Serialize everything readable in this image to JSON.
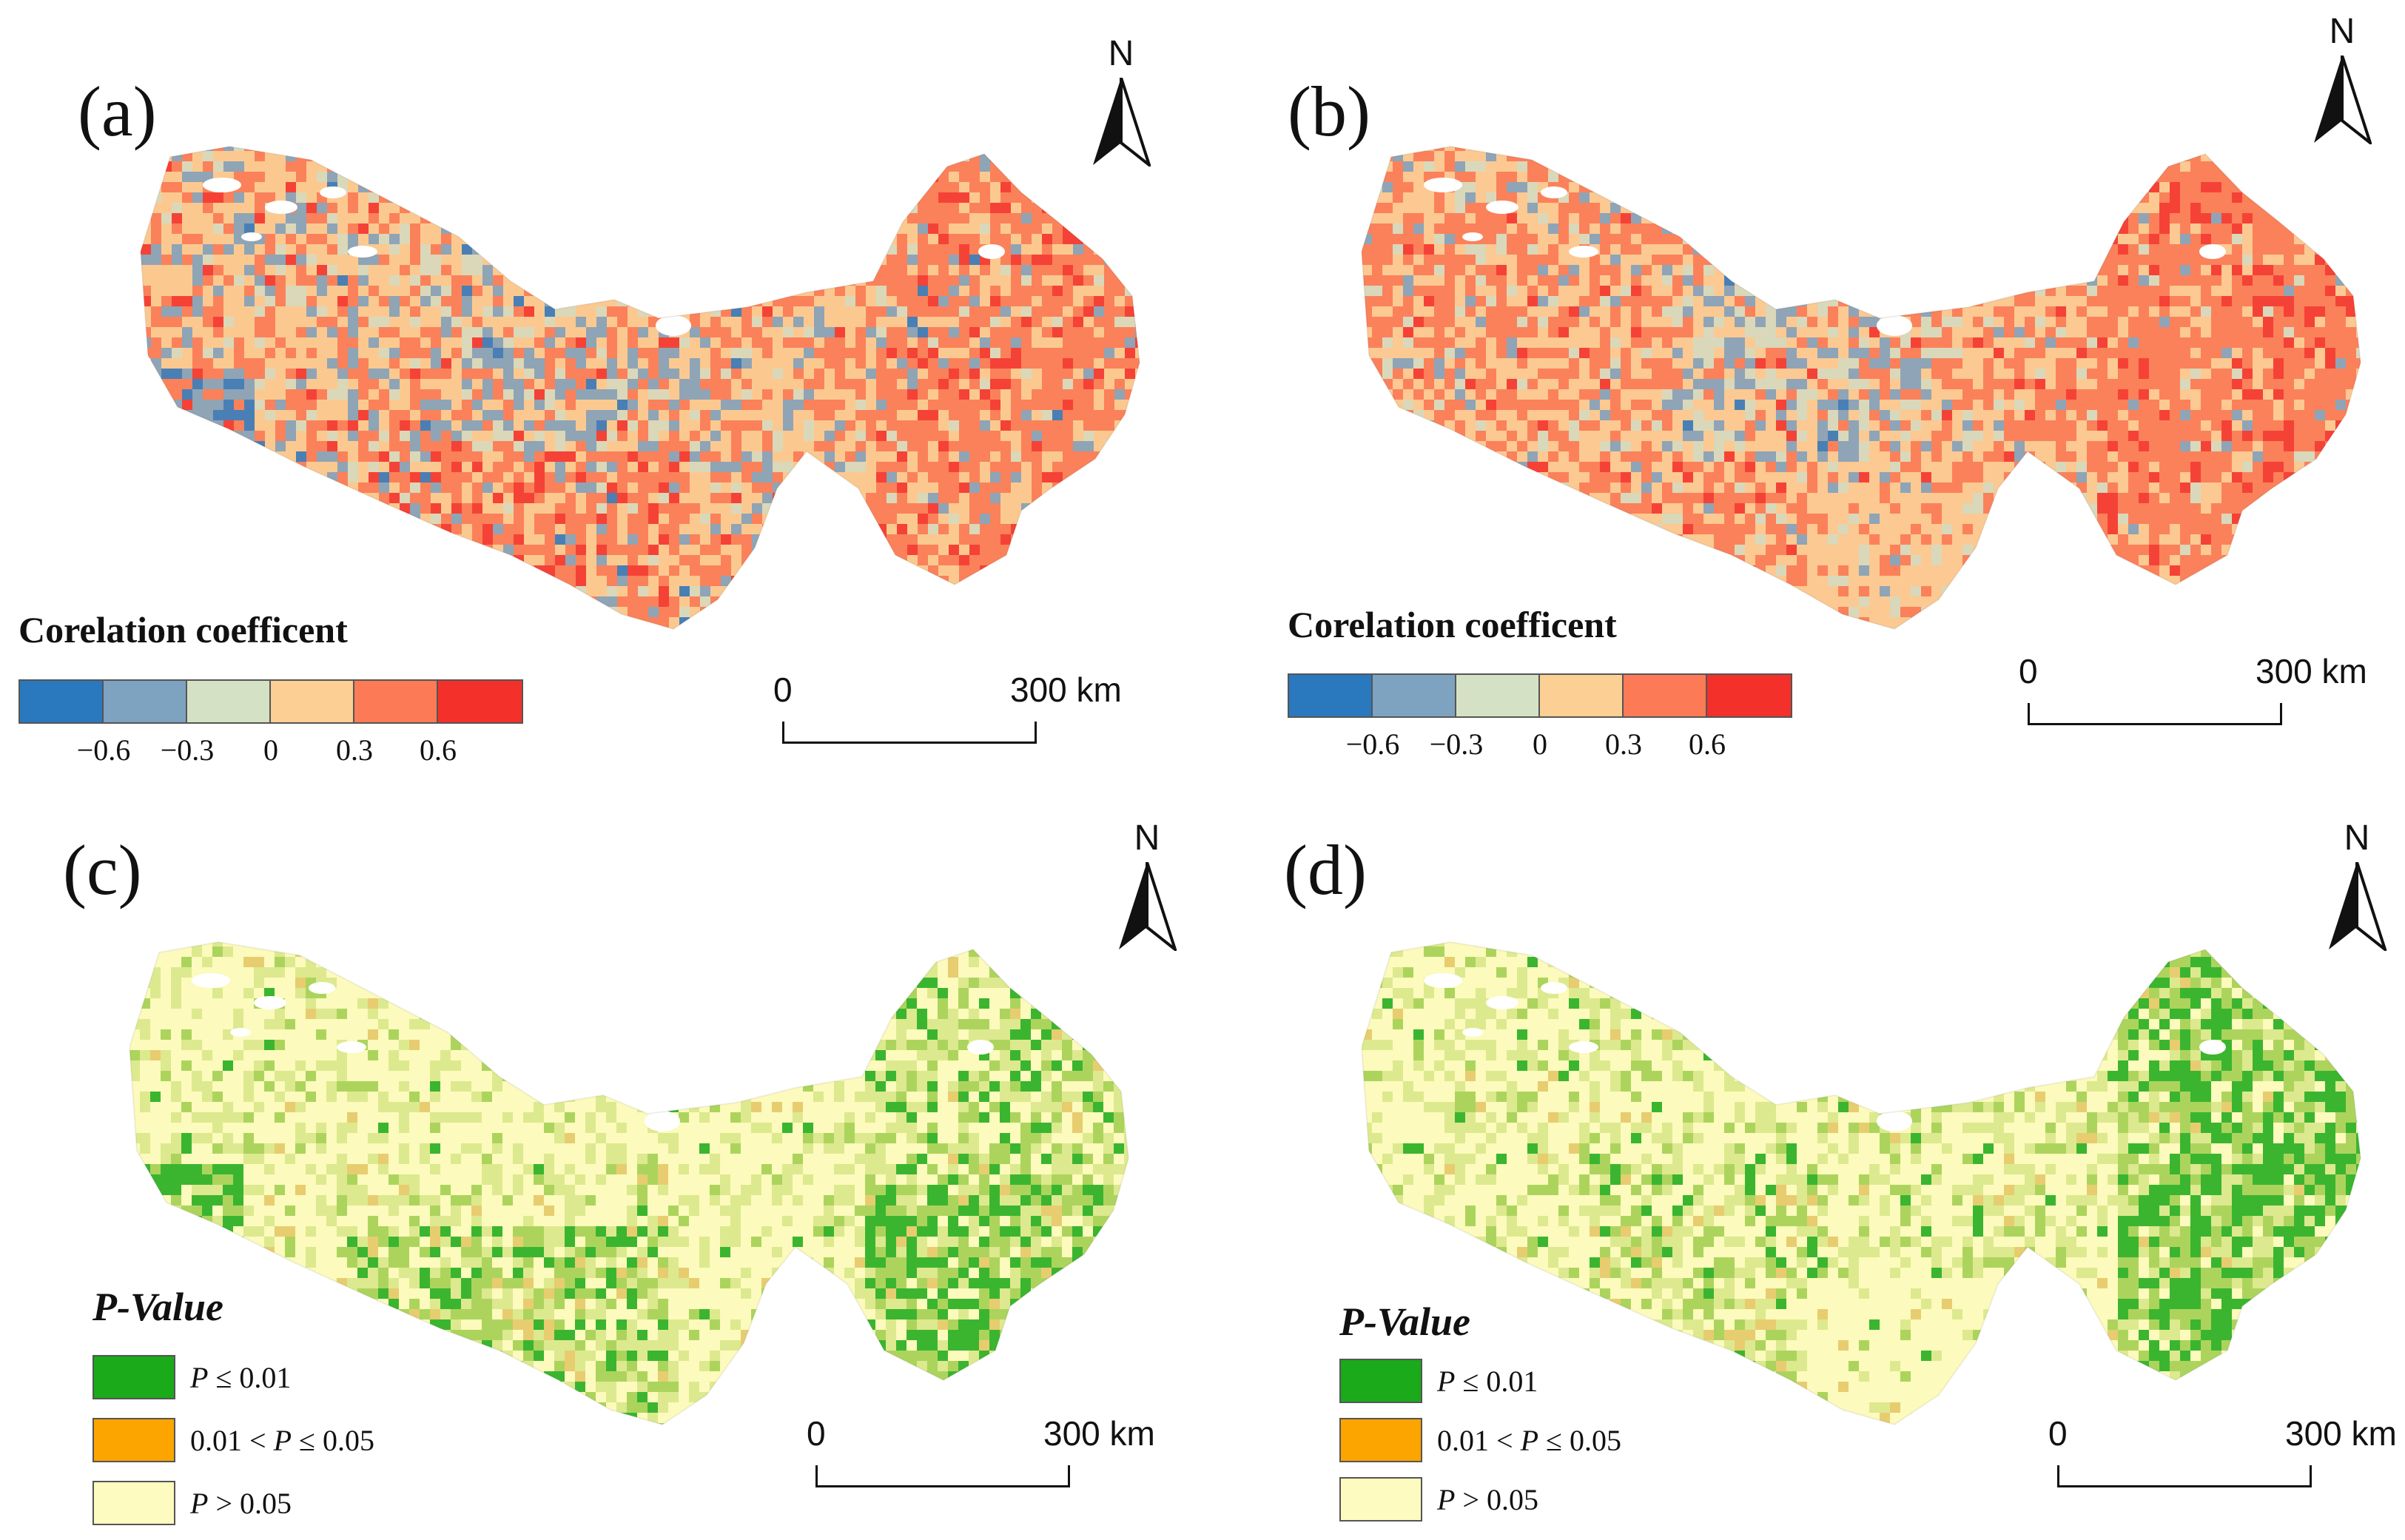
{
  "colors": {
    "corr_ramp": [
      "#2a78be",
      "#7da3c0",
      "#d5e1c4",
      "#fccf94",
      "#fc7a55",
      "#f4302a"
    ],
    "p_sig_strong": "#1aaa1a",
    "p_sig": "#fca500",
    "p_nonsig": "#fdfbc0"
  },
  "panels": [
    {
      "label": "(a)",
      "north_label": "N",
      "legend_type": "correlation",
      "legend_title": "Corelation coefficent",
      "legend_ticks": [
        "−0.6",
        "−0.3",
        "0",
        "0.3",
        "0.6"
      ],
      "scale": {
        "start": "0",
        "end": "300 km"
      },
      "map_style": "corr_a"
    },
    {
      "label": "(b)",
      "north_label": "N",
      "legend_type": "correlation",
      "legend_title": "Corelation coefficent",
      "legend_ticks": [
        "−0.6",
        "−0.3",
        "0",
        "0.3",
        "0.6"
      ],
      "scale": {
        "start": "0",
        "end": "300 km"
      },
      "map_style": "corr_b"
    },
    {
      "label": "(c)",
      "north_label": "N",
      "legend_type": "pvalue",
      "legend_title": "P-Value",
      "legend_items": [
        {
          "pre": "",
          "var": "P",
          "post": " ≤ 0.01"
        },
        {
          "pre": "0.01 < ",
          "var": "P",
          "post": " ≤ 0.05"
        },
        {
          "pre": "",
          "var": "P",
          "post": " > 0.05"
        }
      ],
      "scale": {
        "start": "0",
        "end": "300 km"
      },
      "map_style": "p_c"
    },
    {
      "label": "(d)",
      "north_label": "N",
      "legend_type": "pvalue",
      "legend_title": "P-Value",
      "legend_items": [
        {
          "pre": "",
          "var": "P",
          "post": " ≤ 0.01"
        },
        {
          "pre": "0.01 < ",
          "var": "P",
          "post": " ≤ 0.05"
        },
        {
          "pre": "",
          "var": "P",
          "post": " > 0.05"
        }
      ],
      "scale": {
        "start": "0",
        "end": "300 km"
      },
      "map_style": "p_d"
    }
  ]
}
